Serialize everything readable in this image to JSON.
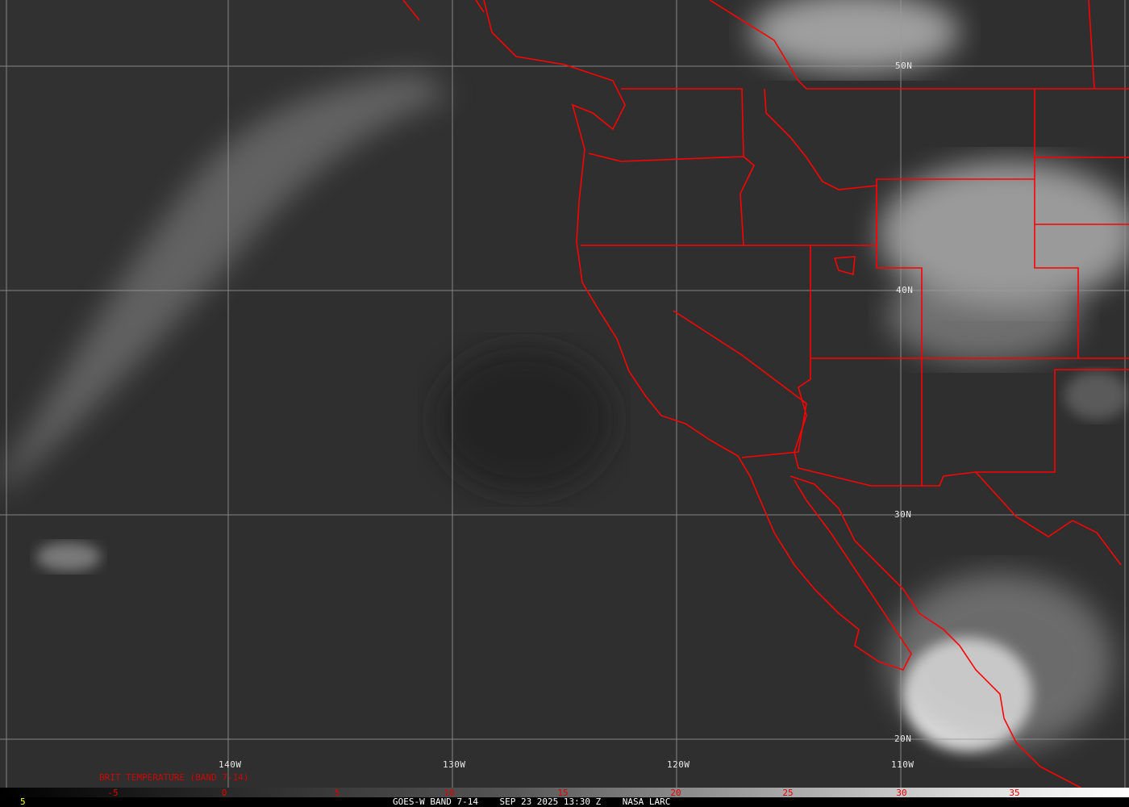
{
  "colors": {
    "borders": "#ff0000",
    "grid": "#9a9a9a",
    "legend_text": "#e00000",
    "frame_number": "#ffff00"
  },
  "latitude_labels": [
    "50N",
    "40N",
    "30N",
    "20N"
  ],
  "longitude_labels": [
    "140W",
    "130W",
    "120W",
    "110W"
  ],
  "legend": {
    "title": "BRIT TEMPERATURE (BAND 7-14)",
    "ticks": [
      "-5",
      "0",
      "5",
      "10",
      "15",
      "20",
      "25",
      "30",
      "35"
    ]
  },
  "footer": {
    "frame_number": "5",
    "caption": "GOES-W BAND 7-14    SEP 23 2025 13:30 Z    NASA LARC"
  }
}
